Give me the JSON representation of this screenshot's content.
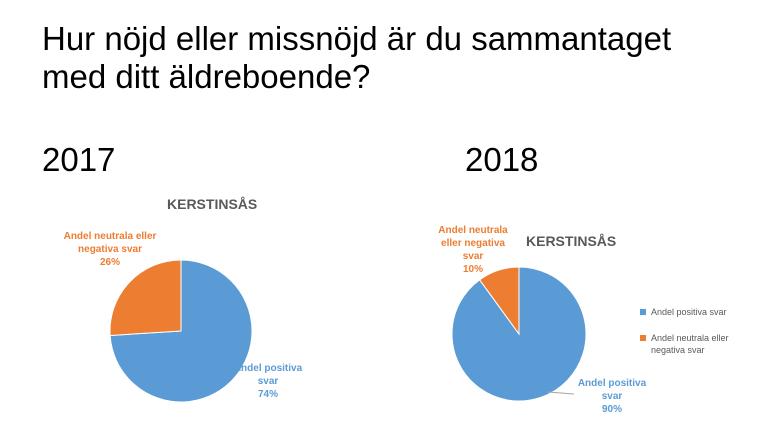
{
  "slide": {
    "title": "Hur nöjd eller missnöjd är du sammantaget med ditt äldreboende?"
  },
  "colors": {
    "positive": "#5b9bd5",
    "negative": "#ed7d31",
    "chart_title": "#595959"
  },
  "chart_data": [
    {
      "type": "pie",
      "year_label": "2017",
      "title": "KERSTINSÅS",
      "categories": [
        "Andel positiva svar",
        "Andel neutrala eller negativa svar"
      ],
      "values": [
        74,
        26
      ],
      "labels": [
        {
          "name": "Andel positiva svar",
          "value": "74%"
        },
        {
          "name": "Andel neutrala eller negativa svar",
          "value": "26%"
        }
      ],
      "legend": []
    },
    {
      "type": "pie",
      "year_label": "2018",
      "title": "KERSTINSÅS",
      "categories": [
        "Andel positiva svar",
        "Andel neutrala eller negativa svar"
      ],
      "values": [
        90,
        10
      ],
      "labels": [
        {
          "name": "Andel positiva svar",
          "value": "90%"
        },
        {
          "name": "Andel neutrala eller negativa svar",
          "value": "10%"
        }
      ],
      "legend": [
        "Andel positiva svar",
        "Andel neutrala eller negativa svar"
      ],
      "legend_position": "right"
    }
  ]
}
